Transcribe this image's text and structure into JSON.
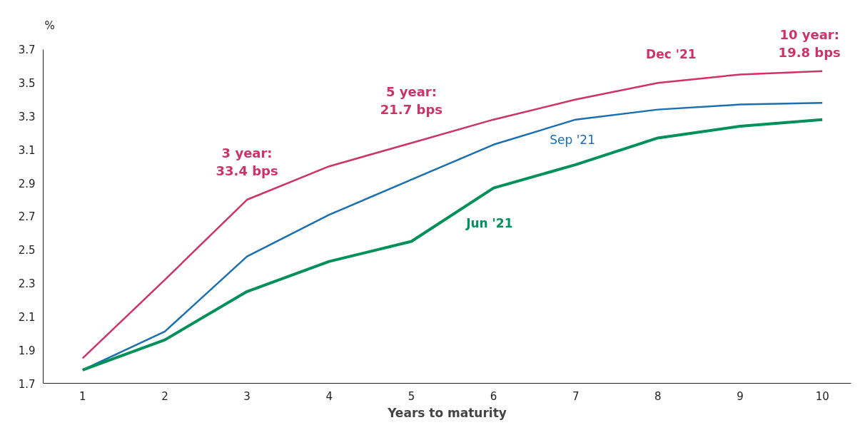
{
  "chart_data": {
    "type": "line",
    "xlabel": "Years to maturity",
    "ylabel": "%",
    "categories": [
      "1",
      "2",
      "3",
      "4",
      "5",
      "6",
      "7",
      "8",
      "9",
      "10"
    ],
    "ylim": [
      1.7,
      3.7
    ],
    "yticks": [
      1.7,
      1.9,
      2.1,
      2.3,
      2.5,
      2.7,
      2.9,
      3.1,
      3.3,
      3.5,
      3.7
    ],
    "grid": false,
    "legend": false,
    "marker": "none",
    "line_style": "solid",
    "series": [
      {
        "name": "Dec '21",
        "color": "#cc3366",
        "values": [
          1.85,
          2.32,
          2.8,
          3.0,
          3.14,
          3.28,
          3.4,
          3.5,
          3.55,
          3.57
        ]
      },
      {
        "name": "Sep '21",
        "color": "#1a6faf",
        "values": [
          1.78,
          2.01,
          2.46,
          2.71,
          2.92,
          3.13,
          3.28,
          3.34,
          3.37,
          3.38
        ]
      },
      {
        "name": "Jun '21",
        "color": "#00905a",
        "values": [
          1.78,
          1.96,
          2.25,
          2.43,
          2.55,
          2.87,
          3.01,
          3.17,
          3.24,
          3.28
        ]
      }
    ],
    "annotations": [
      {
        "text": "3 year:\n33.4 bps",
        "x": "3",
        "y": 2.8
      },
      {
        "text": "5 year:\n21.7 bps",
        "x": "5",
        "y": 3.14
      },
      {
        "text": "10 year:\n19.8 bps",
        "x": "10",
        "y": 3.57
      }
    ]
  }
}
